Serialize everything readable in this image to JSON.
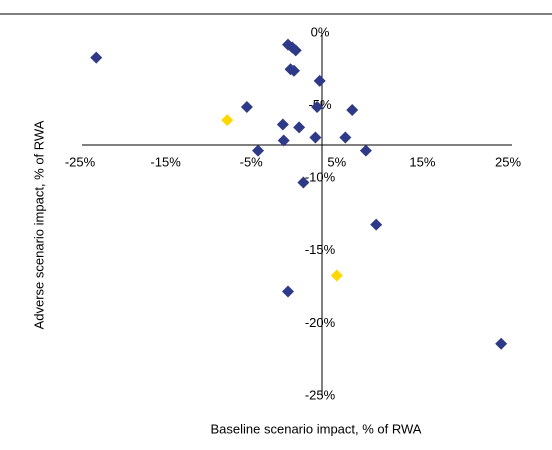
{
  "chart_data": {
    "type": "scatter",
    "x_label": "Baseline scenario impact, % of RWA",
    "y_label": "Adverse scenario impact, % of RWA",
    "xlim": [
      -25,
      25
    ],
    "xticks": [
      {
        "value": -25,
        "label": "-25%"
      },
      {
        "value": -15,
        "label": "-15%"
      },
      {
        "value": -5,
        "label": "-5%"
      },
      {
        "value": 5,
        "label": "5%"
      },
      {
        "value": 15,
        "label": "15%"
      },
      {
        "value": 25,
        "label": "25%"
      }
    ],
    "ylim": [
      -25,
      0
    ],
    "yticks": [
      {
        "value": 0,
        "label": "0%"
      },
      {
        "value": -5,
        "label": "-5%"
      },
      {
        "value": -10,
        "label": "-10%"
      },
      {
        "value": -15,
        "label": "-15%"
      },
      {
        "value": -20,
        "label": "-20%"
      },
      {
        "value": -25,
        "label": "-25%"
      }
    ],
    "series": [
      {
        "color": "#2e3a87",
        "x": [
          -23.1,
          -0.7,
          -0.2,
          0.2,
          -0.4,
          0,
          3.0,
          -5.5,
          2.7,
          6.8,
          -1.3,
          0.6,
          -1.2,
          2.5,
          6.0,
          8.4,
          -4.2,
          1.1,
          9.6,
          -0.7,
          24.2
        ],
        "values": [
          -1.7,
          -0.8,
          -1.0,
          -1.2,
          -2.5,
          -2.6,
          -3.3,
          -5.1,
          -5.1,
          -5.3,
          -6.3,
          -6.5,
          -7.4,
          -7.2,
          -7.2,
          -8.1,
          -8.1,
          -10.3,
          -13.2,
          -17.8,
          -21.4
        ]
      },
      {
        "color": "#ffd700",
        "x": [
          -7.8,
          5.0
        ],
        "values": [
          -6.0,
          -16.7
        ]
      }
    ]
  }
}
